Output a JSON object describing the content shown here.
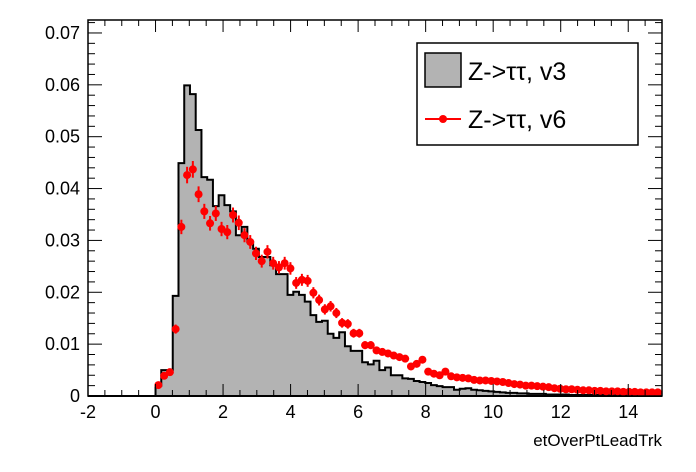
{
  "chart_data": {
    "type": "bar",
    "title": "",
    "xlabel": "etOverPtLeadTrk",
    "ylabel": "",
    "xlim": [
      -2,
      15
    ],
    "ylim": [
      0,
      0.0725
    ],
    "bin_start": 0,
    "bin_width": 0.17,
    "x_ticks": [
      "-2",
      "0",
      "2",
      "4",
      "6",
      "8",
      "10",
      "12",
      "14"
    ],
    "x_tick_values": [
      -2,
      0,
      2,
      4,
      6,
      8,
      10,
      12,
      14
    ],
    "y_ticks": [
      "0",
      "0.01",
      "0.02",
      "0.03",
      "0.04",
      "0.05",
      "0.06",
      "0.07"
    ],
    "y_tick_values": [
      0,
      0.01,
      0.02,
      0.03,
      0.04,
      0.05,
      0.06,
      0.07
    ],
    "legend_position": "top-right",
    "series": [
      {
        "name": "Z->ττ, v3",
        "style": "filled-histogram",
        "color": "#b3b3b3",
        "values": [
          0.002,
          0.005,
          0.005,
          0.0193,
          0.0449,
          0.0599,
          0.0582,
          0.0513,
          0.0422,
          0.0417,
          0.0366,
          0.0387,
          0.0368,
          0.0356,
          0.031,
          0.0326,
          0.0297,
          0.0284,
          0.0268,
          0.0268,
          0.0252,
          0.0235,
          0.0235,
          0.0195,
          0.0201,
          0.0195,
          0.0182,
          0.0156,
          0.0143,
          0.0145,
          0.012,
          0.0112,
          0.0123,
          0.0096,
          0.0087,
          0.0087,
          0.0065,
          0.0061,
          0.0068,
          0.005,
          0.0055,
          0.004,
          0.004,
          0.0034,
          0.0033,
          0.0029,
          0.0027,
          0.0025,
          0.0021,
          0.0019,
          0.0017,
          0.0017,
          0.0012,
          0.0014,
          0.0015,
          0.0012,
          0.0011,
          0.001,
          0.0009,
          0.0008,
          0.0007,
          0.0006,
          0.0006,
          0.0005,
          0.0005,
          0.0004,
          0.0004,
          0.0004,
          0.0003,
          0.0003,
          0.0003,
          0.0003,
          0.0002,
          0.0002,
          0.0002,
          0.0002,
          0.0002,
          0.0002,
          0.0001,
          0.0001,
          0.0001,
          0.0001,
          0.0001,
          0.0001,
          0.0001,
          0.0001,
          0.0001,
          0.0001
        ]
      },
      {
        "name": "Z->ττ, v6",
        "style": "markers-with-errors",
        "color": "#ff0000",
        "values": [
          0.0021,
          0.0039,
          0.0046,
          0.0129,
          0.0326,
          0.0426,
          0.0437,
          0.0389,
          0.0356,
          0.0333,
          0.0352,
          0.0322,
          0.0316,
          0.0349,
          0.0334,
          0.031,
          0.0297,
          0.0275,
          0.026,
          0.0278,
          0.0256,
          0.0248,
          0.0256,
          0.0246,
          0.0218,
          0.0224,
          0.0222,
          0.0199,
          0.0185,
          0.0167,
          0.0173,
          0.016,
          0.0141,
          0.0139,
          0.0121,
          0.0121,
          0.0098,
          0.0098,
          0.0088,
          0.0085,
          0.0082,
          0.0078,
          0.0075,
          0.0072,
          0.0057,
          0.0062,
          0.007,
          0.0047,
          0.0043,
          0.004,
          0.0047,
          0.0038,
          0.0036,
          0.0035,
          0.0034,
          0.0031,
          0.003,
          0.003,
          0.0029,
          0.0028,
          0.0027,
          0.0025,
          0.0023,
          0.0022,
          0.002,
          0.002,
          0.0019,
          0.0018,
          0.0017,
          0.0015,
          0.0014,
          0.0013,
          0.0013,
          0.0012,
          0.0011,
          0.0011,
          0.001,
          0.001,
          0.0009,
          0.0009,
          0.0009,
          0.0008,
          0.0008,
          0.0008,
          0.0007,
          0.0007,
          0.0007,
          0.0007
        ]
      }
    ]
  }
}
